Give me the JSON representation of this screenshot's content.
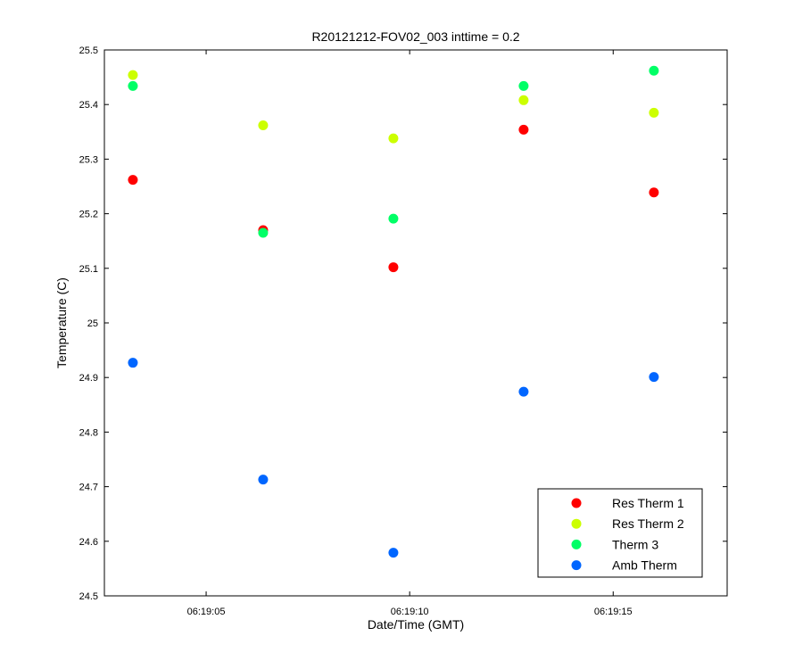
{
  "chart_data": {
    "type": "scatter",
    "title": "R20121212-FOV02_003 inttime = 0.2",
    "xlabel": "Date/Time (GMT)",
    "ylabel": "Temperature (C)",
    "x_unit": "time of day (GMT)",
    "xlim": [
      "06:19:02.5",
      "06:19:17.8"
    ],
    "ylim": [
      24.5,
      25.5
    ],
    "x_ticks": [
      "06:19:05",
      "06:19:10",
      "06:19:15"
    ],
    "y_ticks": [
      "24.5",
      "24.6",
      "24.7",
      "24.8",
      "24.9",
      "25",
      "25.1",
      "25.2",
      "25.3",
      "25.4",
      "25.5"
    ],
    "x": [
      "06:19:03.2",
      "06:19:06.4",
      "06:19:09.6",
      "06:19:12.8",
      "06:19:16.0"
    ],
    "grid": false,
    "legend_position": "bottom-right",
    "series": [
      {
        "name": "Res Therm 1",
        "color": "#ff0000",
        "values": [
          25.262,
          25.17,
          25.102,
          25.354,
          25.239
        ]
      },
      {
        "name": "Res Therm 2",
        "color": "#ccff00",
        "values": [
          25.454,
          25.362,
          25.338,
          25.408,
          25.385
        ]
      },
      {
        "name": "Therm 3",
        "color": "#00ff66",
        "values": [
          25.434,
          25.165,
          25.191,
          25.434,
          25.462
        ]
      },
      {
        "name": "Amb Therm",
        "color": "#0066ff",
        "values": [
          24.927,
          24.713,
          24.579,
          24.874,
          24.901
        ]
      }
    ]
  }
}
